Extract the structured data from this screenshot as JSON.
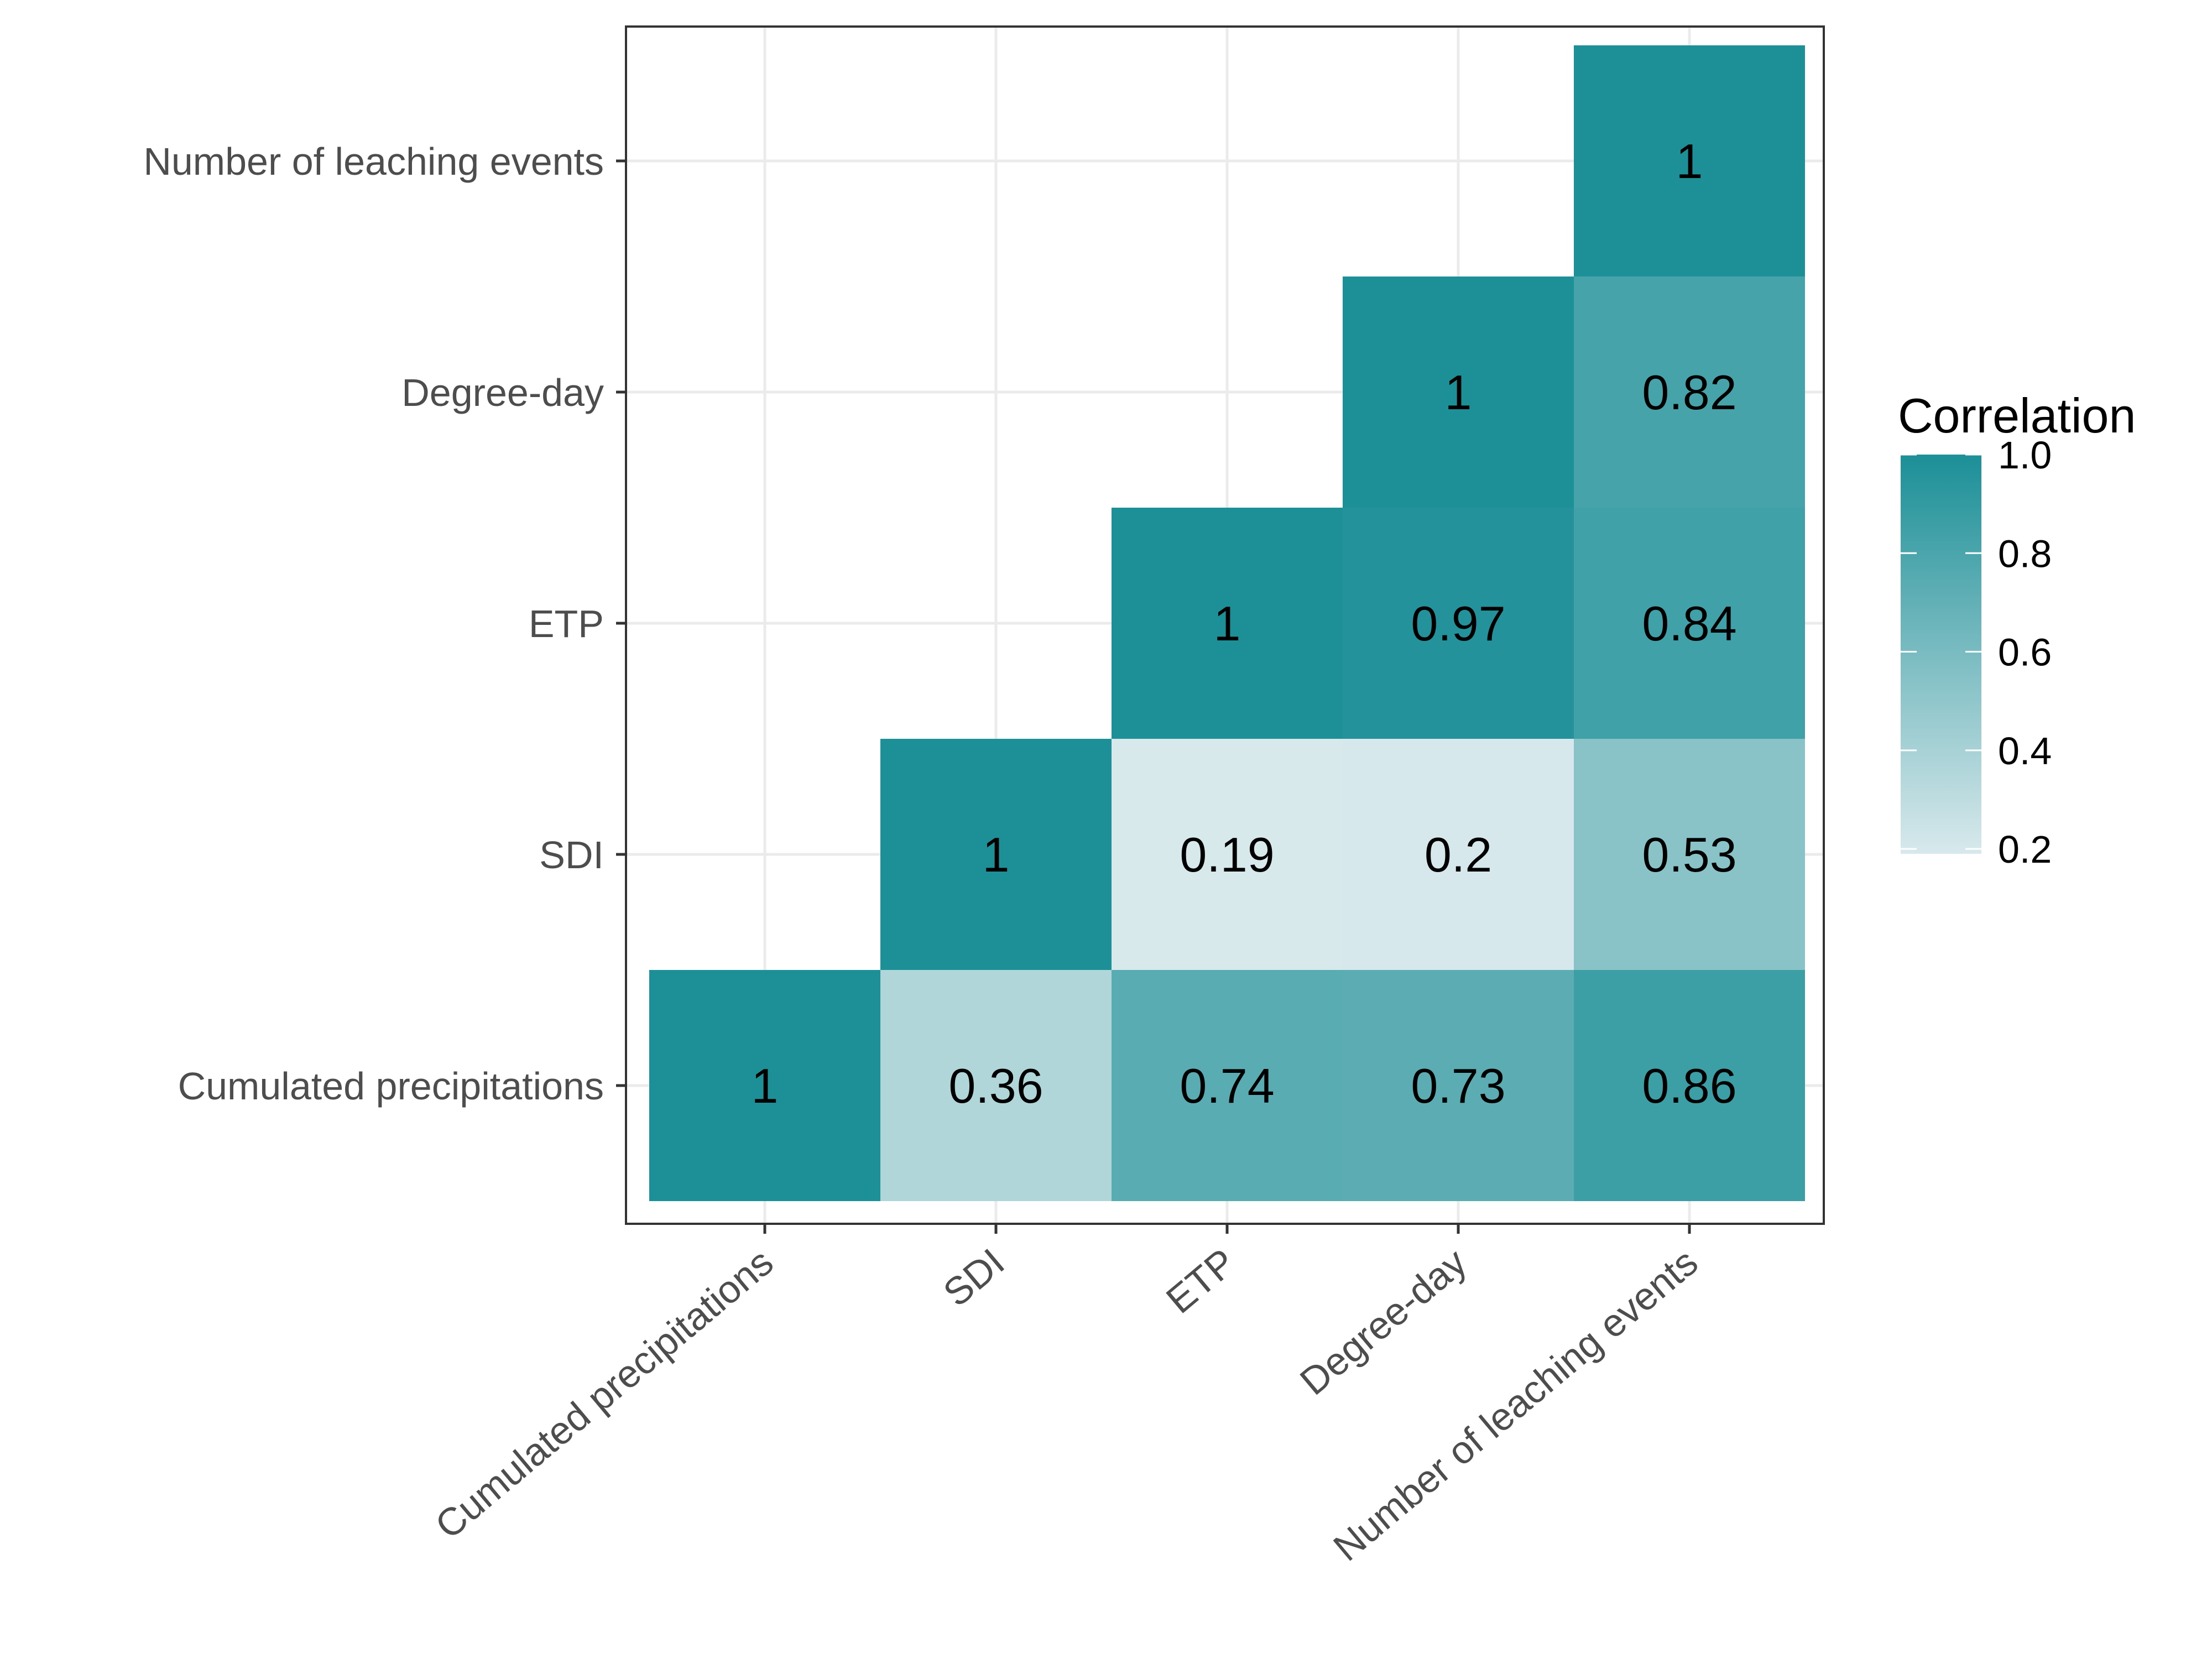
{
  "chart_data": {
    "type": "heatmap",
    "title": "",
    "xlabel": "",
    "ylabel": "",
    "x_categories": [
      "Cumulated precipitations",
      "SDI",
      "ETP",
      "Degree-day",
      "Number of leaching events"
    ],
    "y_categories": [
      "Cumulated precipitations",
      "SDI",
      "ETP",
      "Degree-day",
      "Number of leaching events"
    ],
    "cells": [
      {
        "x": "Cumulated precipitations",
        "y": "Cumulated precipitations",
        "value": 1,
        "label": "1"
      },
      {
        "x": "SDI",
        "y": "Cumulated precipitations",
        "value": 0.36,
        "label": "0.36"
      },
      {
        "x": "ETP",
        "y": "Cumulated precipitations",
        "value": 0.74,
        "label": "0.74"
      },
      {
        "x": "Degree-day",
        "y": "Cumulated precipitations",
        "value": 0.73,
        "label": "0.73"
      },
      {
        "x": "Number of leaching events",
        "y": "Cumulated precipitations",
        "value": 0.86,
        "label": "0.86"
      },
      {
        "x": "SDI",
        "y": "SDI",
        "value": 1,
        "label": "1"
      },
      {
        "x": "ETP",
        "y": "SDI",
        "value": 0.19,
        "label": "0.19"
      },
      {
        "x": "Degree-day",
        "y": "SDI",
        "value": 0.2,
        "label": "0.2"
      },
      {
        "x": "Number of leaching events",
        "y": "SDI",
        "value": 0.53,
        "label": "0.53"
      },
      {
        "x": "ETP",
        "y": "ETP",
        "value": 1,
        "label": "1"
      },
      {
        "x": "Degree-day",
        "y": "ETP",
        "value": 0.97,
        "label": "0.97"
      },
      {
        "x": "Number of leaching events",
        "y": "ETP",
        "value": 0.84,
        "label": "0.84"
      },
      {
        "x": "Degree-day",
        "y": "Degree-day",
        "value": 1,
        "label": "1"
      },
      {
        "x": "Number of leaching events",
        "y": "Degree-day",
        "value": 0.82,
        "label": "0.82"
      },
      {
        "x": "Number of leaching events",
        "y": "Number of leaching events",
        "value": 1,
        "label": "1"
      }
    ],
    "color_scale": {
      "low_color": "#d8e9ec",
      "high_color": "#1c8f97",
      "range": [
        0.19,
        1.0
      ]
    },
    "legend": {
      "title": "Correlation",
      "position": "right",
      "ticks": [
        {
          "value": 1.0,
          "label": "1.0"
        },
        {
          "value": 0.8,
          "label": "0.8"
        },
        {
          "value": 0.6,
          "label": "0.6"
        },
        {
          "value": 0.4,
          "label": "0.4"
        },
        {
          "value": 0.2,
          "label": "0.2"
        }
      ]
    },
    "grid": true,
    "panel_border": true,
    "x_tick_rotation": "45deg"
  }
}
